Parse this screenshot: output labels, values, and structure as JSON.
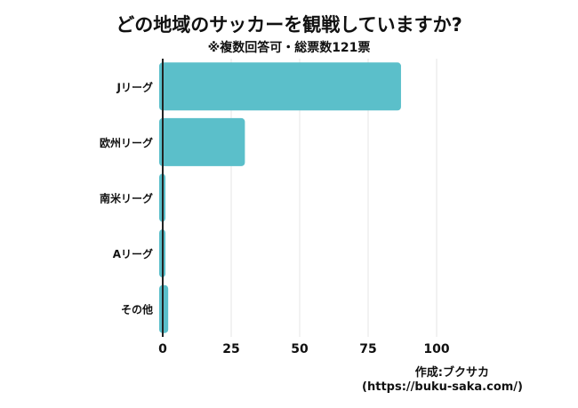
{
  "header": {
    "title": "どの地域のサッカーを観戦していますか?",
    "subtitle": "※複数回答可・総票数121票"
  },
  "credit": {
    "author": "作成:ブクサカ",
    "url": "(https://buku-saka.com/)"
  },
  "chart_data": {
    "type": "bar",
    "orientation": "horizontal",
    "categories": [
      "Jリーグ",
      "欧州リーグ",
      "南米リーグ",
      "Aリーグ",
      "その他"
    ],
    "values": [
      87,
      30,
      1,
      1,
      2
    ],
    "xticks": [
      0,
      25,
      50,
      75,
      100
    ],
    "xlim": [
      0,
      100
    ],
    "grid": true,
    "bar_color": "#5bbfca",
    "grid_color": "#e6e6e6",
    "axis_color": "#222222"
  }
}
